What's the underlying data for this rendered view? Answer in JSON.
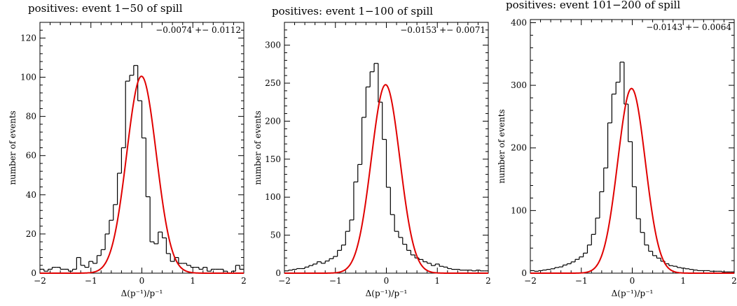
{
  "chart_data": [
    {
      "type": "histogram",
      "title": "positives: event 1−50 of spill",
      "xlabel": "Δ(p⁻¹)/p⁻¹",
      "ylabel": "number of events",
      "annotation": "−0.0074 +− 0.0112",
      "xlim": [
        -2,
        2
      ],
      "ylim": [
        0,
        128
      ],
      "xticks": [
        -2,
        -1,
        0,
        1,
        2
      ],
      "yticks": [
        0,
        20,
        40,
        60,
        80,
        100,
        120
      ],
      "bin_width": 0.08,
      "bin_start": -2.0,
      "hist_color": "#000000",
      "fit_color": "#e00000",
      "fit": {
        "amplitude": 100.5,
        "mean": -0.0074,
        "sigma": 0.29
      },
      "counts": [
        2,
        1,
        2,
        3,
        3,
        2,
        2,
        1,
        2,
        8,
        4,
        3,
        6,
        5,
        9,
        12,
        20,
        27,
        35,
        51,
        64,
        98,
        101,
        106,
        88,
        69,
        39,
        16,
        15,
        21,
        18,
        10,
        6,
        8,
        5,
        5,
        4,
        3,
        3,
        2,
        3,
        1,
        2,
        2,
        2,
        1,
        0,
        1,
        4,
        2
      ]
    },
    {
      "type": "histogram",
      "title": "positives: event 1−100 of spill",
      "xlabel": "Δ(p⁻¹)/p⁻¹",
      "ylabel": "number of events",
      "annotation": "−0.0153 +− 0.0071",
      "xlim": [
        -2,
        2
      ],
      "ylim": [
        0,
        330
      ],
      "xticks": [
        -2,
        -1,
        0,
        1,
        2
      ],
      "yticks": [
        0,
        50,
        100,
        150,
        200,
        250,
        300
      ],
      "bin_width": 0.08,
      "bin_start": -2.0,
      "hist_color": "#000000",
      "fit_color": "#e00000",
      "fit": {
        "amplitude": 248,
        "mean": -0.0153,
        "sigma": 0.28
      },
      "counts": [
        3,
        4,
        5,
        6,
        6,
        8,
        10,
        12,
        15,
        13,
        16,
        19,
        22,
        30,
        37,
        55,
        70,
        120,
        143,
        205,
        245,
        265,
        276,
        225,
        176,
        113,
        77,
        55,
        47,
        38,
        30,
        24,
        20,
        18,
        15,
        13,
        10,
        12,
        9,
        8,
        6,
        5,
        5,
        4,
        4,
        4,
        3,
        4,
        3,
        3
      ]
    },
    {
      "type": "histogram",
      "title": "positives: event 101−200 of spill",
      "xlabel": "Δ(p⁻¹)/p⁻¹",
      "ylabel": "number of events",
      "annotation": "−0.0143 +− 0.0064",
      "xlim": [
        -2,
        2
      ],
      "ylim": [
        0,
        405
      ],
      "xticks": [
        -2,
        -1,
        0,
        1,
        2
      ],
      "yticks": [
        0,
        100,
        200,
        300,
        400
      ],
      "bin_width": 0.08,
      "bin_start": -2.0,
      "hist_color": "#000000",
      "fit_color": "#e00000",
      "fit": {
        "amplitude": 295,
        "mean": -0.0143,
        "sigma": 0.27
      },
      "counts": [
        4,
        3,
        4,
        5,
        6,
        7,
        9,
        10,
        13,
        15,
        18,
        22,
        26,
        32,
        45,
        62,
        88,
        130,
        168,
        240,
        286,
        305,
        337,
        270,
        210,
        138,
        87,
        65,
        45,
        35,
        28,
        24,
        19,
        15,
        12,
        11,
        9,
        8,
        7,
        6,
        5,
        4,
        4,
        4,
        3,
        3,
        3,
        2,
        2,
        2
      ]
    }
  ]
}
